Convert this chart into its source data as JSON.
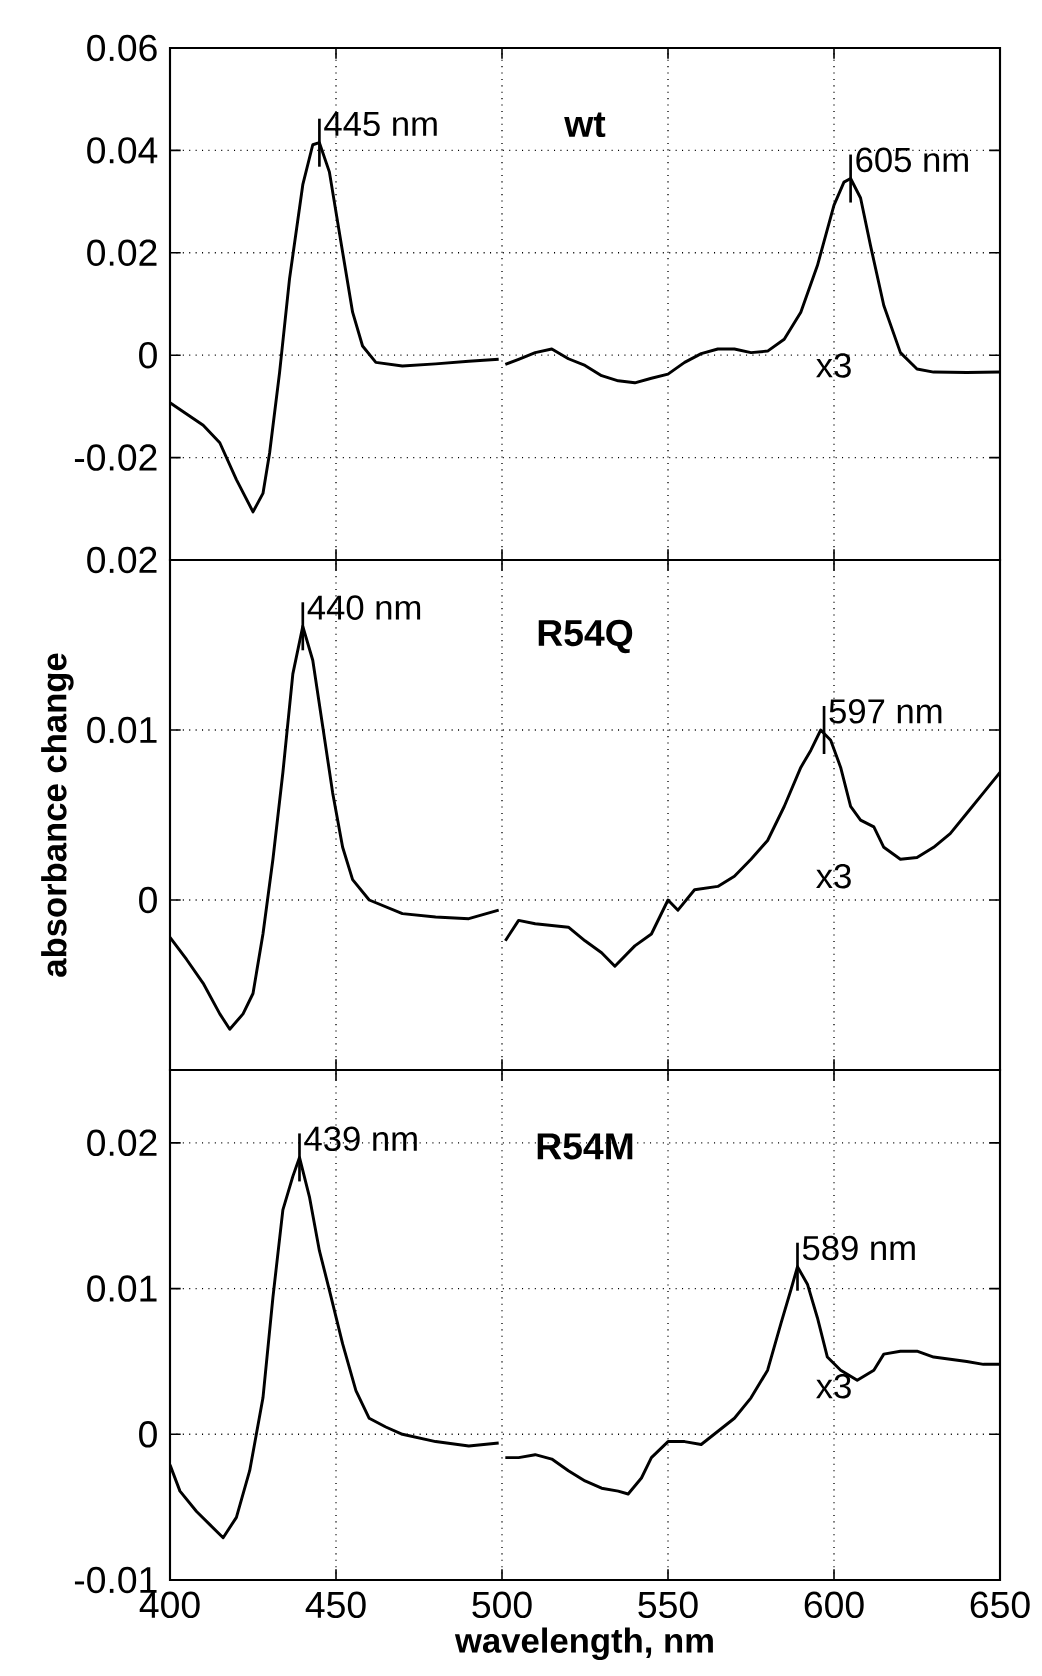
{
  "chart_data": [
    {
      "type": "line",
      "title": "wt",
      "color": "#000000",
      "grid": true,
      "tick_labels": "y",
      "x": [
        400,
        410,
        415,
        420,
        425,
        428,
        430,
        433,
        436,
        440,
        443,
        445,
        448,
        451,
        455,
        458,
        462,
        470,
        480,
        490,
        499,
        500,
        501,
        505,
        510,
        515,
        520,
        525,
        530,
        535,
        540,
        545,
        550,
        555,
        560,
        565,
        570,
        575,
        580,
        585,
        590,
        595,
        600,
        603,
        605,
        608,
        611,
        615,
        620,
        625,
        630,
        640,
        650
      ],
      "values": [
        -0.0093,
        -0.0137,
        -0.0171,
        -0.0243,
        -0.0306,
        -0.027,
        -0.0191,
        -0.0034,
        0.0149,
        0.0333,
        0.0411,
        0.0415,
        0.0358,
        0.024,
        0.0084,
        0.0018,
        -0.0014,
        -0.0021,
        -0.0017,
        -0.0012,
        -0.0008,
        null,
        -0.0018,
        -0.0008,
        0.0005,
        0.0012,
        -0.0007,
        -0.002,
        -0.004,
        -0.005,
        -0.0054,
        -0.0045,
        -0.0037,
        -0.0014,
        0.0003,
        0.0012,
        0.0012,
        0.0005,
        0.0008,
        0.0031,
        0.0084,
        0.0175,
        0.0293,
        0.0338,
        0.0345,
        0.0307,
        0.0214,
        0.0097,
        0.0005,
        -0.0027,
        -0.0033,
        -0.0034,
        -0.0033
      ],
      "xlim": [
        400,
        650
      ],
      "xticks": [
        400,
        450,
        500,
        550,
        600,
        650
      ],
      "ylim": [
        -0.04,
        0.06
      ],
      "yticks": [
        -0.02,
        0,
        0.02,
        0.04,
        0.06
      ],
      "annotations": [
        {
          "text": "445 nm",
          "x": 445,
          "y": 0.0415
        },
        {
          "text": "605 nm",
          "x": 605,
          "y": 0.0345
        },
        "x3"
      ]
    },
    {
      "type": "line",
      "title": "R54Q",
      "ylabel": "absorbance change",
      "color": "#000000",
      "grid": true,
      "tick_labels": "y",
      "x": [
        400,
        405,
        410,
        415,
        418,
        422,
        425,
        428,
        431,
        434,
        437,
        440,
        443,
        446,
        449,
        452,
        455,
        460,
        470,
        480,
        490,
        499,
        500,
        501,
        505,
        510,
        520,
        525,
        530,
        534,
        540,
        545,
        550,
        553,
        558,
        565,
        570,
        575,
        580,
        585,
        590,
        593,
        596,
        599,
        602,
        605,
        608,
        612,
        615,
        620,
        625,
        630,
        635,
        640,
        645,
        650
      ],
      "values": [
        -0.0022,
        -0.0035,
        -0.0049,
        -0.0067,
        -0.0076,
        -0.0067,
        -0.0055,
        -0.002,
        0.0024,
        0.0075,
        0.0133,
        0.0161,
        0.0141,
        0.0102,
        0.0063,
        0.0031,
        0.0012,
        0,
        -0.0008,
        -0.001,
        -0.0011,
        -0.0006,
        null,
        -0.0024,
        -0.0012,
        -0.0014,
        -0.0016,
        -0.0024,
        -0.0031,
        -0.0039,
        -0.0027,
        -0.002,
        0,
        -0.0006,
        0.0006,
        0.0008,
        0.0014,
        0.0024,
        0.0035,
        0.0055,
        0.0078,
        0.0088,
        0.01,
        0.0094,
        0.0078,
        0.0055,
        0.0047,
        0.0043,
        0.0031,
        0.0024,
        0.0025,
        0.0031,
        0.0039,
        0.0051,
        0.0063,
        0.0075
      ],
      "xlim": [
        400,
        650
      ],
      "xticks": [
        400,
        450,
        500,
        550,
        600,
        650
      ],
      "ylim": [
        -0.01,
        0.02
      ],
      "yticks": [
        0,
        0.01,
        0.02
      ],
      "annotations": [
        {
          "text": "440 nm",
          "x": 440,
          "y": 0.0161
        },
        {
          "text": "597 nm",
          "x": 597,
          "y": 0.01
        },
        "x3"
      ]
    },
    {
      "type": "line",
      "title": "R54M",
      "xlabel": "wavelength, nm",
      "color": "#000000",
      "grid": true,
      "x": [
        400,
        403,
        408,
        412,
        416,
        420,
        424,
        428,
        431,
        434,
        437,
        439,
        442,
        445,
        448,
        452,
        456,
        460,
        465,
        470,
        480,
        490,
        499,
        500,
        501,
        505,
        510,
        515,
        520,
        525,
        530,
        535,
        538,
        542,
        545,
        550,
        555,
        560,
        565,
        570,
        575,
        580,
        584,
        587,
        589,
        592,
        595,
        598,
        602,
        607,
        612,
        615,
        620,
        625,
        630,
        640,
        645,
        650
      ],
      "values": [
        -0.0021,
        -0.0039,
        -0.0053,
        -0.0062,
        -0.0071,
        -0.0057,
        -0.0025,
        0.0025,
        0.0094,
        0.0154,
        0.0177,
        0.019,
        0.0163,
        0.0126,
        0.0099,
        0.0062,
        0.003,
        0.0011,
        0.0005,
        0,
        -0.0005,
        -0.0008,
        -0.0006,
        null,
        -0.0016,
        -0.0016,
        -0.0014,
        -0.0017,
        -0.0025,
        -0.0032,
        -0.0037,
        -0.0039,
        -0.0041,
        -0.003,
        -0.0016,
        -0.0005,
        -0.0005,
        -0.0007,
        0.0002,
        0.0011,
        0.0025,
        0.0044,
        0.0076,
        0.0099,
        0.0115,
        0.0103,
        0.008,
        0.0053,
        0.0044,
        0.0037,
        0.0044,
        0.0055,
        0.0057,
        0.0057,
        0.0053,
        0.005,
        0.0048,
        0.0048
      ],
      "xlim": [
        400,
        650
      ],
      "xticks": [
        400,
        450,
        500,
        550,
        600,
        650
      ],
      "ylim": [
        -0.01,
        0.025
      ],
      "yticks": [
        -0.01,
        0,
        0.01,
        0.02
      ],
      "annotations": [
        {
          "text": "439 nm",
          "x": 439,
          "y": 0.019
        },
        {
          "text": "589 nm",
          "x": 589,
          "y": 0.0115
        },
        "x3"
      ]
    }
  ]
}
